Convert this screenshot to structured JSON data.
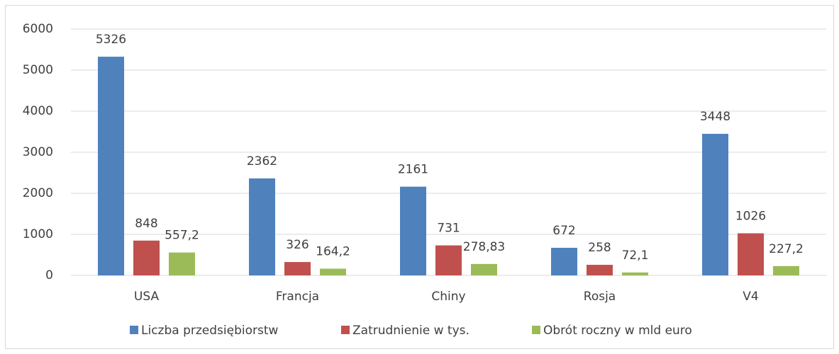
{
  "chart_data": {
    "type": "bar",
    "categories": [
      "USA",
      "Francja",
      "Chiny",
      "Rosja",
      "V4"
    ],
    "series": [
      {
        "name": "Liczba przedsiębiorstw",
        "color": "#4f81bd",
        "values": [
          5326,
          2362,
          2161,
          672,
          3448
        ]
      },
      {
        "name": "Zatrudnienie w tys.",
        "color": "#c0504d",
        "values": [
          848,
          326,
          731,
          258,
          1026
        ]
      },
      {
        "name": "Obrót roczny w mld euro",
        "color": "#9bbb59",
        "values": [
          557.2,
          164.2,
          278.83,
          72.1,
          227.2
        ],
        "value_labels": [
          "557,2",
          "164,2",
          "278,83",
          "72,1",
          "227,2"
        ]
      }
    ],
    "ylim": [
      0,
      6000
    ],
    "yticks": [
      0,
      1000,
      2000,
      3000,
      4000,
      5000,
      6000
    ],
    "grid": true,
    "legend": "bottom"
  }
}
